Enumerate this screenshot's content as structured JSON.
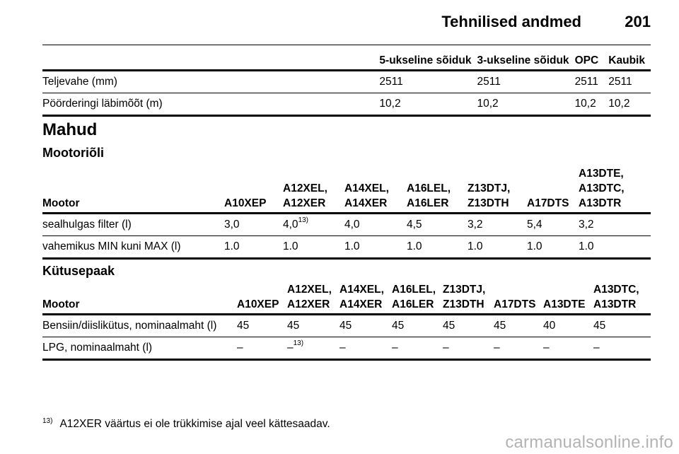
{
  "header": {
    "title": "Tehnilised andmed",
    "page_number": "201"
  },
  "dimensions_table": {
    "columns": [
      "",
      "5-ukseline sõiduk",
      "3-ukseline sõiduk",
      "OPC",
      "Kaubik"
    ],
    "rows": [
      [
        "Teljevahe (mm)",
        "2511",
        "2511",
        "2511",
        "2511"
      ],
      [
        "Pöörderingi läbimõõt (m)",
        "10,2",
        "10,2",
        "10,2",
        "10,2"
      ]
    ]
  },
  "section_title": "Mahud",
  "oil": {
    "subtitle": "Mootoriõli",
    "columns": [
      [
        "Mootor"
      ],
      [
        "A10XEP"
      ],
      [
        "A12XEL,",
        "A12XER"
      ],
      [
        "A14XEL,",
        "A14XER"
      ],
      [
        "A16LEL,",
        "A16LER"
      ],
      [
        "Z13DTJ,",
        "Z13DTH"
      ],
      [
        "A17DTS"
      ],
      [
        "A13DTE,",
        "A13DTC,",
        "A13DTR"
      ]
    ],
    "rows": [
      [
        "sealhulgas filter (l)",
        "3,0",
        "4,0",
        "4,0",
        "4,5",
        "3,2",
        "5,4",
        "3,2"
      ],
      [
        "vahemikus MIN kuni MAX (l)",
        "1.0",
        "1.0",
        "1.0",
        "1.0",
        "1.0",
        "1.0",
        "1.0"
      ]
    ],
    "note_mark": "13)"
  },
  "fuel": {
    "subtitle": "Kütusepaak",
    "columns": [
      [
        "Mootor"
      ],
      [
        "A10XEP"
      ],
      [
        "A12XEL,",
        "A12XER"
      ],
      [
        "A14XEL,",
        "A14XER"
      ],
      [
        "A16LEL,",
        "A16LER"
      ],
      [
        "Z13DTJ,",
        "Z13DTH"
      ],
      [
        "A17DTS"
      ],
      [
        "A13DTE"
      ],
      [
        "A13DTC,",
        "A13DTR"
      ]
    ],
    "rows": [
      [
        "Bensiin/diislikütus, nominaalmaht (l)",
        "45",
        "45",
        "45",
        "45",
        "45",
        "45",
        "40",
        "45"
      ],
      [
        "LPG, nominaalmaht (l)",
        "–",
        "–",
        "–",
        "–",
        "–",
        "–",
        "–",
        "–"
      ]
    ],
    "note_mark": "13)"
  },
  "footnote": {
    "mark": "13)",
    "text": "A12XER väärtus ei ole trükkimise ajal veel kättesaadav."
  },
  "watermark": "carmanualsonline.info"
}
